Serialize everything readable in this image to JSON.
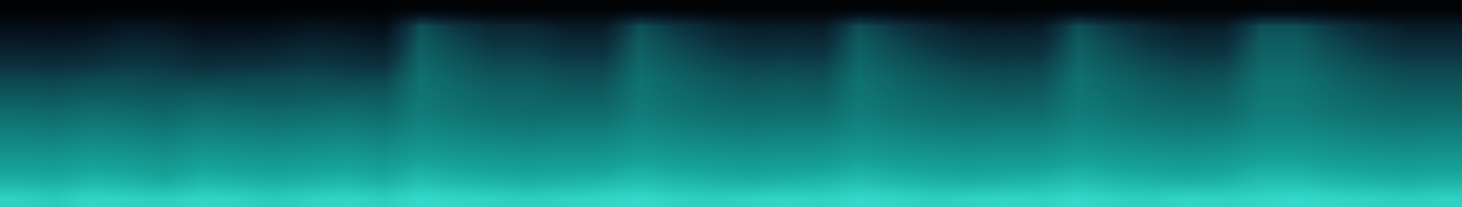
{
  "chart_data": {
    "type": "heatmap",
    "tick_labels": false,
    "zlim": [
      0,
      1
    ],
    "cells": [
      [
        0.92,
        0.9,
        0.93,
        0.92,
        0.91,
        0.93,
        0.92,
        0.9,
        0.92,
        0.93,
        0.91,
        0.94,
        0.93,
        0.92,
        0.91,
        0.92,
        0.93,
        0.94,
        0.92,
        0.91,
        0.92,
        0.93,
        0.92,
        0.94,
        0.93,
        0.91,
        0.92,
        0.93,
        0.92,
        0.94,
        0.92,
        0.91,
        0.93,
        0.92,
        0.93,
        0.94,
        0.93,
        0.92,
        0.91,
        0.92
      ],
      [
        0.84,
        0.83,
        0.85,
        0.84,
        0.82,
        0.85,
        0.84,
        0.83,
        0.84,
        0.85,
        0.83,
        0.87,
        0.85,
        0.84,
        0.83,
        0.84,
        0.85,
        0.87,
        0.85,
        0.84,
        0.83,
        0.84,
        0.85,
        0.87,
        0.85,
        0.84,
        0.83,
        0.84,
        0.85,
        0.87,
        0.85,
        0.84,
        0.83,
        0.84,
        0.87,
        0.87,
        0.85,
        0.84,
        0.83,
        0.84
      ],
      [
        0.78,
        0.77,
        0.79,
        0.78,
        0.76,
        0.79,
        0.78,
        0.77,
        0.78,
        0.79,
        0.77,
        0.81,
        0.79,
        0.78,
        0.77,
        0.78,
        0.78,
        0.81,
        0.79,
        0.78,
        0.77,
        0.78,
        0.78,
        0.81,
        0.79,
        0.78,
        0.77,
        0.78,
        0.78,
        0.81,
        0.79,
        0.78,
        0.77,
        0.78,
        0.81,
        0.81,
        0.79,
        0.78,
        0.77,
        0.78
      ],
      [
        0.72,
        0.71,
        0.73,
        0.72,
        0.7,
        0.73,
        0.72,
        0.71,
        0.72,
        0.73,
        0.71,
        0.75,
        0.73,
        0.72,
        0.71,
        0.72,
        0.72,
        0.75,
        0.73,
        0.72,
        0.71,
        0.72,
        0.72,
        0.75,
        0.73,
        0.72,
        0.71,
        0.72,
        0.72,
        0.75,
        0.73,
        0.72,
        0.71,
        0.72,
        0.75,
        0.75,
        0.73,
        0.72,
        0.71,
        0.72
      ],
      [
        0.66,
        0.65,
        0.67,
        0.66,
        0.64,
        0.67,
        0.66,
        0.65,
        0.66,
        0.67,
        0.65,
        0.7,
        0.68,
        0.66,
        0.65,
        0.66,
        0.66,
        0.7,
        0.68,
        0.66,
        0.65,
        0.66,
        0.66,
        0.7,
        0.68,
        0.66,
        0.65,
        0.66,
        0.66,
        0.7,
        0.68,
        0.66,
        0.65,
        0.66,
        0.7,
        0.7,
        0.68,
        0.66,
        0.65,
        0.66
      ],
      [
        0.6,
        0.59,
        0.61,
        0.6,
        0.58,
        0.61,
        0.6,
        0.59,
        0.6,
        0.61,
        0.59,
        0.66,
        0.63,
        0.61,
        0.6,
        0.6,
        0.6,
        0.66,
        0.63,
        0.61,
        0.6,
        0.6,
        0.6,
        0.66,
        0.63,
        0.61,
        0.6,
        0.6,
        0.6,
        0.66,
        0.63,
        0.61,
        0.6,
        0.6,
        0.66,
        0.66,
        0.63,
        0.61,
        0.6,
        0.6
      ],
      [
        0.53,
        0.52,
        0.54,
        0.53,
        0.52,
        0.54,
        0.53,
        0.52,
        0.53,
        0.54,
        0.53,
        0.64,
        0.6,
        0.57,
        0.57,
        0.55,
        0.55,
        0.64,
        0.6,
        0.57,
        0.55,
        0.56,
        0.55,
        0.64,
        0.6,
        0.57,
        0.55,
        0.54,
        0.55,
        0.64,
        0.6,
        0.57,
        0.55,
        0.56,
        0.64,
        0.64,
        0.6,
        0.57,
        0.55,
        0.55
      ],
      [
        0.46,
        0.45,
        0.47,
        0.48,
        0.46,
        0.45,
        0.46,
        0.47,
        0.48,
        0.46,
        0.46,
        0.62,
        0.57,
        0.53,
        0.53,
        0.5,
        0.5,
        0.62,
        0.57,
        0.53,
        0.5,
        0.51,
        0.5,
        0.62,
        0.57,
        0.53,
        0.5,
        0.49,
        0.5,
        0.62,
        0.57,
        0.53,
        0.5,
        0.51,
        0.62,
        0.62,
        0.57,
        0.53,
        0.5,
        0.5
      ],
      [
        0.36,
        0.35,
        0.37,
        0.4,
        0.39,
        0.35,
        0.36,
        0.37,
        0.4,
        0.38,
        0.36,
        0.58,
        0.52,
        0.47,
        0.47,
        0.43,
        0.43,
        0.58,
        0.52,
        0.47,
        0.43,
        0.44,
        0.43,
        0.58,
        0.52,
        0.47,
        0.43,
        0.42,
        0.43,
        0.58,
        0.52,
        0.47,
        0.43,
        0.44,
        0.58,
        0.58,
        0.52,
        0.47,
        0.43,
        0.43
      ],
      [
        0.26,
        0.25,
        0.27,
        0.32,
        0.31,
        0.25,
        0.26,
        0.27,
        0.31,
        0.29,
        0.26,
        0.55,
        0.47,
        0.4,
        0.4,
        0.35,
        0.35,
        0.55,
        0.47,
        0.4,
        0.35,
        0.36,
        0.35,
        0.55,
        0.47,
        0.4,
        0.35,
        0.34,
        0.35,
        0.55,
        0.47,
        0.4,
        0.35,
        0.36,
        0.55,
        0.55,
        0.47,
        0.4,
        0.35,
        0.35
      ],
      [
        0.15,
        0.14,
        0.16,
        0.22,
        0.21,
        0.14,
        0.15,
        0.16,
        0.21,
        0.19,
        0.15,
        0.5,
        0.4,
        0.32,
        0.32,
        0.25,
        0.25,
        0.5,
        0.4,
        0.32,
        0.25,
        0.26,
        0.25,
        0.5,
        0.4,
        0.32,
        0.25,
        0.24,
        0.25,
        0.5,
        0.4,
        0.32,
        0.25,
        0.26,
        0.5,
        0.5,
        0.4,
        0.32,
        0.25,
        0.25
      ],
      [
        0.02,
        0.02,
        0.02,
        0.02,
        0.02,
        0.02,
        0.02,
        0.02,
        0.02,
        0.02,
        0.02,
        0.05,
        0.04,
        0.03,
        0.03,
        0.03,
        0.03,
        0.05,
        0.04,
        0.03,
        0.03,
        0.03,
        0.03,
        0.05,
        0.04,
        0.03,
        0.03,
        0.03,
        0.03,
        0.05,
        0.04,
        0.03,
        0.03,
        0.03,
        0.05,
        0.05,
        0.04,
        0.03,
        0.03,
        0.03
      ]
    ]
  }
}
